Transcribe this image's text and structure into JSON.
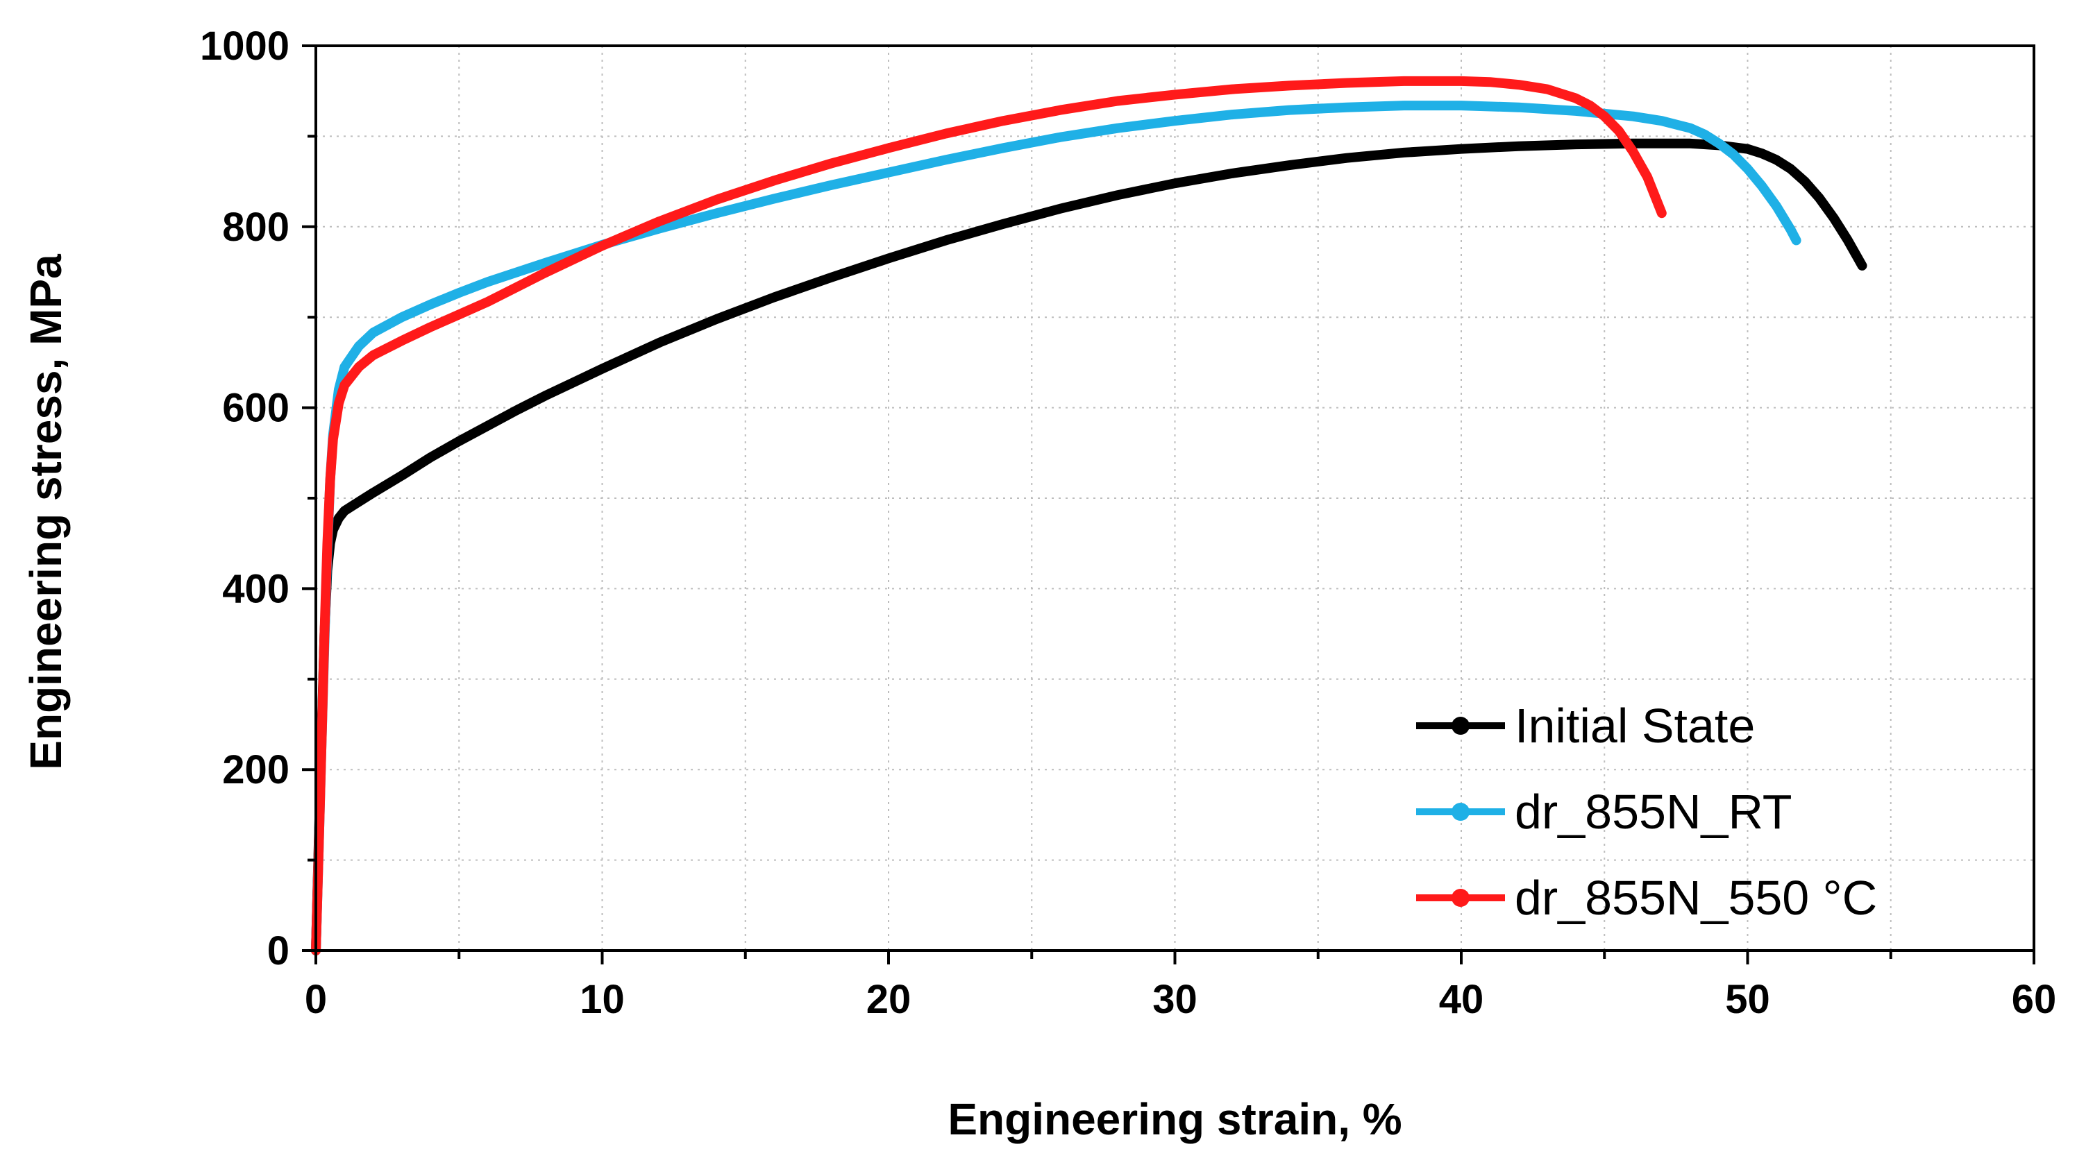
{
  "chart_data": {
    "type": "line",
    "title": "",
    "xlabel": "Engineering strain, %",
    "ylabel": "Engineering stress, MPa",
    "xlim": [
      0,
      60
    ],
    "ylim": [
      0,
      1000
    ],
    "xticks": [
      0,
      10,
      20,
      30,
      40,
      50,
      60
    ],
    "yticks": [
      0,
      200,
      400,
      600,
      800,
      1000
    ],
    "grid": true,
    "legend_position": "bottom-right",
    "series": [
      {
        "name": "Initial State",
        "color": "#000000",
        "x": [
          0,
          0.1,
          0.2,
          0.3,
          0.4,
          0.5,
          0.6,
          0.8,
          1,
          1.5,
          2,
          3,
          4,
          5,
          6,
          7,
          8,
          9,
          10,
          12,
          14,
          16,
          18,
          20,
          22,
          24,
          26,
          28,
          30,
          32,
          34,
          36,
          38,
          40,
          42,
          44,
          46,
          48,
          49,
          50,
          50.5,
          51,
          51.5,
          52,
          52.5,
          53,
          53.5,
          54
        ],
        "y": [
          0,
          120,
          240,
          350,
          420,
          450,
          465,
          478,
          486,
          496,
          506,
          525,
          545,
          563,
          580,
          597,
          613,
          628,
          643,
          672,
          698,
          722,
          744,
          765,
          785,
          803,
          820,
          835,
          848,
          859,
          868,
          876,
          882,
          886,
          889,
          891,
          892,
          892,
          890,
          886,
          881,
          874,
          864,
          850,
          832,
          810,
          785,
          757
        ]
      },
      {
        "name": "dr_855N_RT",
        "color": "#1fb0e6",
        "x": [
          0,
          0.1,
          0.2,
          0.3,
          0.4,
          0.5,
          0.6,
          0.8,
          1,
          1.5,
          2,
          3,
          4,
          5,
          6,
          8,
          10,
          12,
          14,
          16,
          18,
          20,
          22,
          24,
          26,
          28,
          30,
          32,
          34,
          36,
          38,
          40,
          42,
          44,
          46,
          47,
          48,
          48.5,
          49,
          49.5,
          50,
          50.5,
          51,
          51.5,
          51.7
        ],
        "y": [
          0,
          110,
          230,
          340,
          440,
          520,
          570,
          620,
          645,
          668,
          683,
          700,
          714,
          727,
          739,
          760,
          780,
          798,
          815,
          831,
          846,
          860,
          874,
          887,
          899,
          909,
          917,
          924,
          929,
          932,
          934,
          934,
          932,
          928,
          922,
          917,
          909,
          902,
          892,
          880,
          864,
          845,
          823,
          797,
          785
        ]
      },
      {
        "name": "dr_855N_550 °C",
        "color": "#ff1a1a",
        "x": [
          0,
          0.1,
          0.2,
          0.3,
          0.4,
          0.5,
          0.6,
          0.8,
          1,
          1.5,
          2,
          3,
          4,
          5,
          6,
          8,
          10,
          12,
          14,
          16,
          18,
          20,
          22,
          24,
          26,
          28,
          30,
          32,
          34,
          36,
          38,
          40,
          41,
          42,
          43,
          44,
          44.5,
          45,
          45.5,
          46,
          46.5,
          47
        ],
        "y": [
          0,
          110,
          230,
          350,
          450,
          520,
          565,
          605,
          625,
          645,
          658,
          674,
          689,
          703,
          717,
          749,
          779,
          806,
          830,
          851,
          870,
          887,
          903,
          917,
          929,
          939,
          946,
          952,
          956,
          959,
          961,
          961,
          960,
          957,
          952,
          942,
          934,
          922,
          906,
          883,
          855,
          815
        ]
      }
    ]
  }
}
